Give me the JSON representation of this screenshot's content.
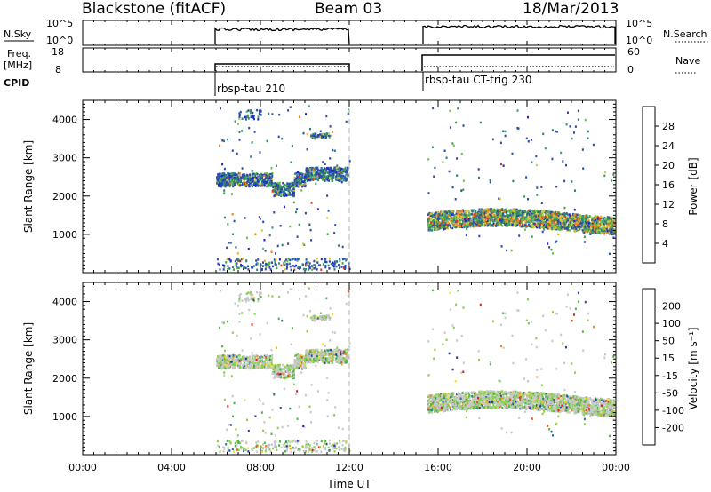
{
  "header": {
    "station": "Blackstone (fitACF)",
    "beam": "Beam 03",
    "date": "18/Mar/2013"
  },
  "top_panel": {
    "left_label": "N.Sky",
    "left_ticks": [
      "10^5",
      "10^0"
    ],
    "right_label": "N.Search",
    "right_ticks": [
      "10^5",
      "10^0"
    ]
  },
  "freq_panel": {
    "left_label_1": "Freq.",
    "left_label_2": "[MHz]",
    "left_ticks": [
      "18",
      "8"
    ],
    "right_label": "Nave",
    "right_ticks": [
      "60",
      "0"
    ]
  },
  "cpid": {
    "label": "CPID",
    "mode_1": "rbsp-tau 210",
    "mode_2": "rbsp-tau CT-trig 230"
  },
  "colors": {
    "power_scale": [
      "#1f1fe6",
      "#2b4dab",
      "#2f7f7a",
      "#3e9e5a",
      "#6cc24a",
      "#c8d245",
      "#f2b21b",
      "#f27b1b",
      "#e8341b",
      "#e0201a"
    ],
    "velocity_scale": [
      "#e01f1f",
      "#ea4a1a",
      "#f08a1f",
      "#f4bd2a",
      "#f3e13a",
      "#c8c8c8",
      "#8ad04a",
      "#4fb44a",
      "#2b7b8c",
      "#2645a8",
      "#1b2fb8"
    ]
  },
  "chart_data": [
    {
      "type": "heatmap",
      "name": "power",
      "ylabel": "Slant Range [km]",
      "xlabel": "",
      "ylim": [
        0,
        4500
      ],
      "yticks": [
        "1000",
        "2000",
        "3000",
        "4000"
      ],
      "colorbar_label": "Power [dB]",
      "colorbar_ticks": [
        "28",
        "24",
        "20",
        "16",
        "12",
        "8",
        "4"
      ],
      "data_gap": [
        "12:00",
        "15:30"
      ],
      "bands": [
        {
          "t_start": 6.0,
          "t_end": 11.9,
          "range_center": 2450,
          "range_width": 350,
          "power_level": "low-mid"
        },
        {
          "t_start": 9.5,
          "t_end": 11.6,
          "range_center": 2600,
          "range_width": 450,
          "power_level": "mid"
        },
        {
          "t_start": 15.5,
          "t_end": 23.9,
          "range_center": 1350,
          "range_width": 450,
          "power_level": "mid-high"
        },
        {
          "t_start": 6.0,
          "t_end": 12.0,
          "range_center": 250,
          "range_width": 250,
          "power_level": "low"
        }
      ]
    },
    {
      "type": "heatmap",
      "name": "velocity",
      "ylabel": "Slant Range [km]",
      "xlabel": "Time UT",
      "ylim": [
        0,
        4500
      ],
      "yticks": [
        "1000",
        "2000",
        "3000",
        "4000"
      ],
      "xticks": [
        "00:00",
        "04:00",
        "08:00",
        "12:00",
        "16:00",
        "20:00",
        "00:00"
      ],
      "colorbar_label": "Velocity [m s⁻¹]",
      "colorbar_ticks": [
        "200",
        "100",
        "50",
        "15",
        "-15",
        "-50",
        "-100",
        "-200"
      ],
      "data_gap": [
        "12:00",
        "15:30"
      ]
    }
  ]
}
